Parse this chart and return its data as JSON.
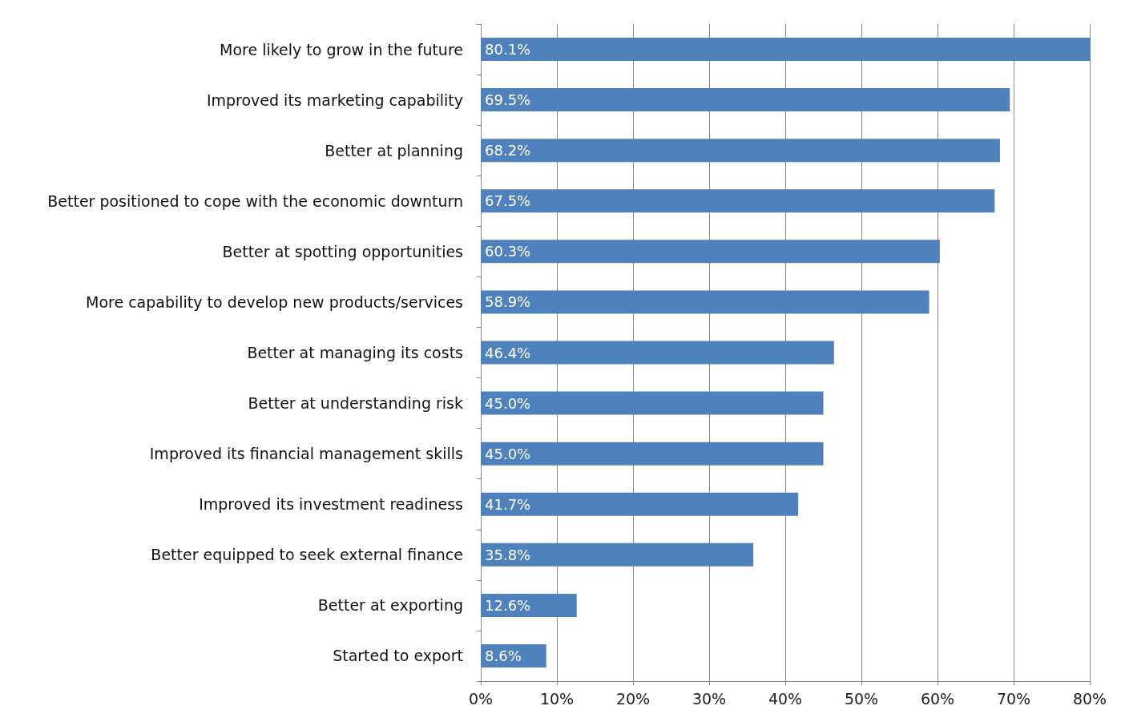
{
  "chart_data": {
    "type": "bar",
    "orientation": "horizontal",
    "categories": [
      "More likely to grow in the future",
      "Improved its marketing capability",
      "Better at planning",
      "Better positioned to cope with the economic downturn",
      "Better at spotting opportunities",
      "More capability to develop new products/services",
      "Better at managing its costs",
      "Better at understanding risk",
      "Improved its financial management skills",
      "Improved its investment readiness",
      "Better equipped to seek external finance",
      "Better at exporting",
      "Started to export"
    ],
    "values": [
      80.1,
      69.5,
      68.2,
      67.5,
      60.3,
      58.9,
      46.4,
      45.0,
      45.0,
      41.7,
      35.8,
      12.6,
      8.6
    ],
    "value_labels": [
      "80.1%",
      "69.5%",
      "68.2%",
      "67.5%",
      "60.3%",
      "58.9%",
      "46.4%",
      "45.0%",
      "45.0%",
      "41.7%",
      "35.8%",
      "12.6%",
      "8.6%"
    ],
    "color": "#4f81bd",
    "xlim": [
      0,
      80.1
    ],
    "xticks": [
      {
        "value": 0,
        "label": "0%"
      },
      {
        "value": 10,
        "label": "10%"
      },
      {
        "value": 20,
        "label": "20%"
      },
      {
        "value": 30,
        "label": "30%"
      },
      {
        "value": 40,
        "label": "40%"
      },
      {
        "value": 50,
        "label": "50%"
      },
      {
        "value": 60,
        "label": "60%"
      },
      {
        "value": 70,
        "label": "70%"
      },
      {
        "value": 80,
        "label": "80%"
      }
    ],
    "grid": "x"
  }
}
